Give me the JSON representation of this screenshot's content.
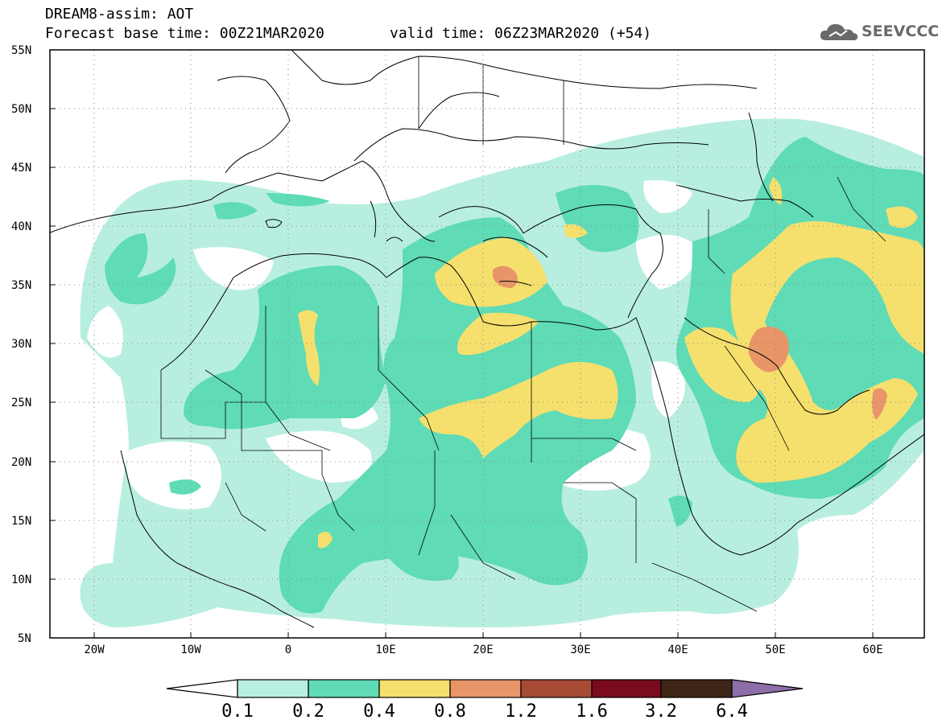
{
  "header": {
    "title_line1": "DREAM8-assim: AOT",
    "base_time_label": "Forecast base time: 00Z21MAR2020",
    "valid_time_label": "valid time: 06Z23MAR2020 (+54)",
    "logo_text": "SEEVCCC"
  },
  "axes": {
    "lat_labels": [
      "55N",
      "50N",
      "45N",
      "40N",
      "35N",
      "30N",
      "25N",
      "20N",
      "15N",
      "10N",
      "5N"
    ],
    "lon_labels": [
      "20W",
      "10W",
      "0",
      "10E",
      "20E",
      "30E",
      "40E",
      "50E",
      "60E"
    ]
  },
  "colorbar": {
    "labels": [
      "0.1",
      "0.2",
      "0.4",
      "0.8",
      "1.2",
      "1.6",
      "3.2",
      "6.4"
    ],
    "colors": [
      "#b8eee0",
      "#5fdcb6",
      "#f5e06e",
      "#e8956a",
      "#a74a36",
      "#7a0b1e",
      "#3e2617",
      "#8e6ea8"
    ]
  },
  "colors": {
    "low": "#b8eee0",
    "moderate": "#5fdcb6",
    "high": "#f5e06e",
    "very_high": "#e8956a"
  }
}
